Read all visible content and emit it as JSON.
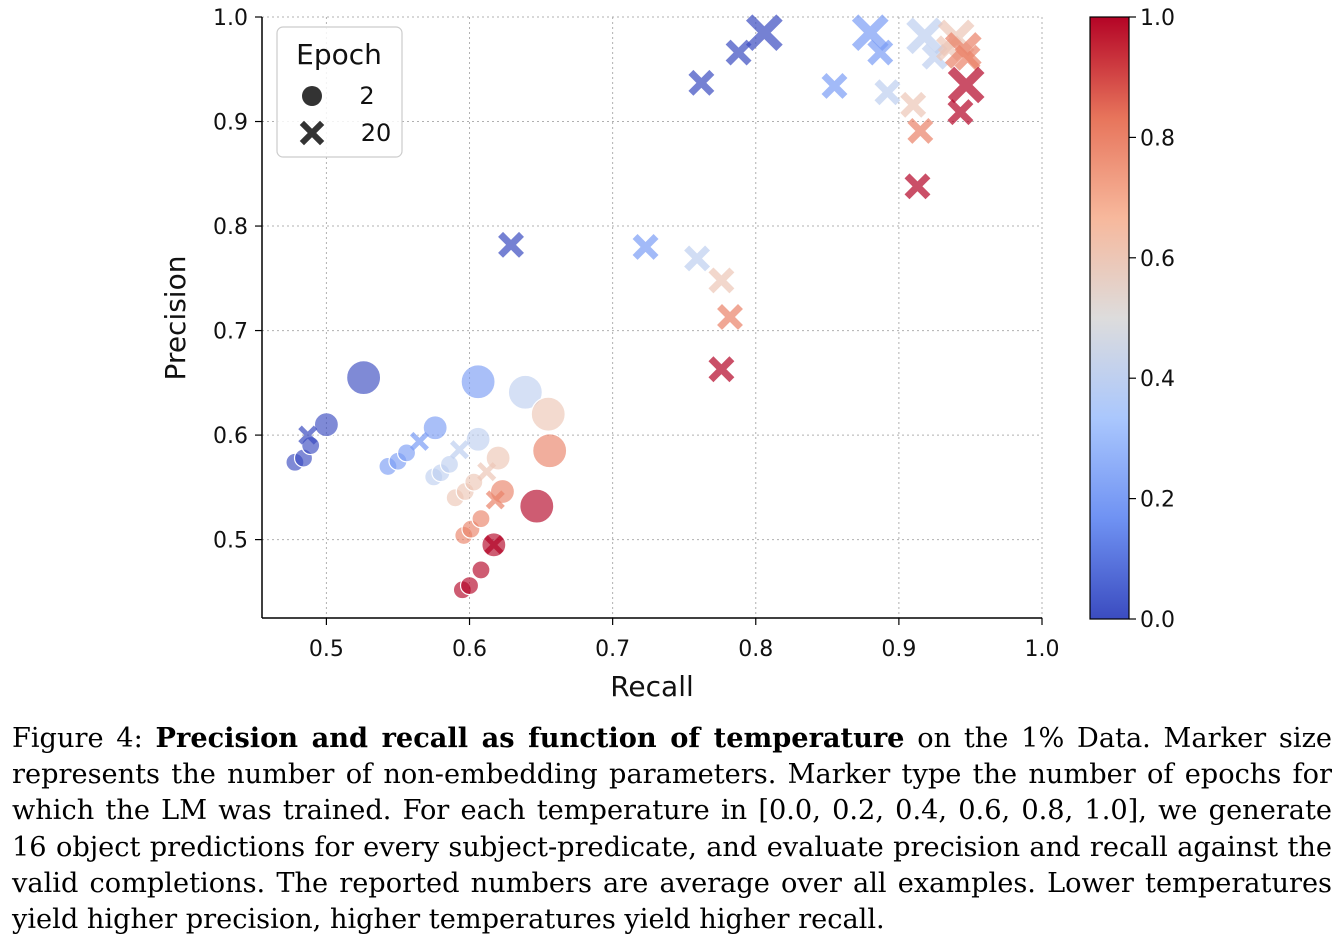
{
  "chart_data": {
    "type": "scatter",
    "xlabel": "Recall",
    "ylabel": "Precision",
    "xlim": [
      0.455,
      1.0
    ],
    "ylim": [
      0.425,
      1.0
    ],
    "x_ticks": [
      "0.5",
      "0.6",
      "0.7",
      "0.8",
      "0.9",
      "1.0"
    ],
    "y_ticks": [
      "0.5",
      "0.6",
      "0.7",
      "0.8",
      "0.9",
      "1.0"
    ],
    "grid": true,
    "legend": {
      "title": "Epoch",
      "placement": "top-left",
      "entries": [
        {
          "marker": "circle",
          "label": "2"
        },
        {
          "marker": "x",
          "label": "20"
        }
      ]
    },
    "colorbar": {
      "ticks": [
        "0.0",
        "0.2",
        "0.4",
        "0.6",
        "0.8",
        "1.0"
      ],
      "range": [
        0.0,
        1.0
      ],
      "colormap": "coolwarm",
      "colors": [
        "#3b4cc0",
        "#6f92f3",
        "#aac7fd",
        "#dddcdc",
        "#f7b89c",
        "#e7745b",
        "#b40426"
      ]
    },
    "points": [
      {
        "x": 0.478,
        "y": 0.574,
        "t": 0.0,
        "epoch": 2,
        "size": 1
      },
      {
        "x": 0.484,
        "y": 0.578,
        "t": 0.0,
        "epoch": 2,
        "size": 1
      },
      {
        "x": 0.489,
        "y": 0.59,
        "t": 0.0,
        "epoch": 2,
        "size": 1
      },
      {
        "x": 0.5,
        "y": 0.61,
        "t": 0.0,
        "epoch": 2,
        "size": 2
      },
      {
        "x": 0.526,
        "y": 0.655,
        "t": 0.0,
        "epoch": 2,
        "size": 4
      },
      {
        "x": 0.543,
        "y": 0.57,
        "t": 0.2,
        "epoch": 2,
        "size": 1
      },
      {
        "x": 0.55,
        "y": 0.575,
        "t": 0.2,
        "epoch": 2,
        "size": 1
      },
      {
        "x": 0.556,
        "y": 0.583,
        "t": 0.2,
        "epoch": 2,
        "size": 1
      },
      {
        "x": 0.576,
        "y": 0.607,
        "t": 0.2,
        "epoch": 2,
        "size": 2
      },
      {
        "x": 0.606,
        "y": 0.651,
        "t": 0.2,
        "epoch": 2,
        "size": 4
      },
      {
        "x": 0.575,
        "y": 0.56,
        "t": 0.4,
        "epoch": 2,
        "size": 1
      },
      {
        "x": 0.58,
        "y": 0.564,
        "t": 0.4,
        "epoch": 2,
        "size": 1
      },
      {
        "x": 0.586,
        "y": 0.572,
        "t": 0.4,
        "epoch": 2,
        "size": 1
      },
      {
        "x": 0.606,
        "y": 0.596,
        "t": 0.4,
        "epoch": 2,
        "size": 2
      },
      {
        "x": 0.639,
        "y": 0.641,
        "t": 0.4,
        "epoch": 2,
        "size": 4
      },
      {
        "x": 0.59,
        "y": 0.54,
        "t": 0.6,
        "epoch": 2,
        "size": 1
      },
      {
        "x": 0.597,
        "y": 0.546,
        "t": 0.6,
        "epoch": 2,
        "size": 1
      },
      {
        "x": 0.603,
        "y": 0.555,
        "t": 0.6,
        "epoch": 2,
        "size": 1
      },
      {
        "x": 0.62,
        "y": 0.578,
        "t": 0.6,
        "epoch": 2,
        "size": 2
      },
      {
        "x": 0.655,
        "y": 0.62,
        "t": 0.6,
        "epoch": 2,
        "size": 4
      },
      {
        "x": 0.596,
        "y": 0.504,
        "t": 0.8,
        "epoch": 2,
        "size": 1
      },
      {
        "x": 0.601,
        "y": 0.51,
        "t": 0.8,
        "epoch": 2,
        "size": 1
      },
      {
        "x": 0.608,
        "y": 0.52,
        "t": 0.8,
        "epoch": 2,
        "size": 1
      },
      {
        "x": 0.623,
        "y": 0.546,
        "t": 0.8,
        "epoch": 2,
        "size": 2
      },
      {
        "x": 0.656,
        "y": 0.585,
        "t": 0.8,
        "epoch": 2,
        "size": 4
      },
      {
        "x": 0.595,
        "y": 0.452,
        "t": 1.0,
        "epoch": 2,
        "size": 1
      },
      {
        "x": 0.6,
        "y": 0.456,
        "t": 1.0,
        "epoch": 2,
        "size": 1
      },
      {
        "x": 0.608,
        "y": 0.471,
        "t": 1.0,
        "epoch": 2,
        "size": 1
      },
      {
        "x": 0.617,
        "y": 0.495,
        "t": 1.0,
        "epoch": 2,
        "size": 2
      },
      {
        "x": 0.647,
        "y": 0.532,
        "t": 1.0,
        "epoch": 2,
        "size": 4
      },
      {
        "x": 0.487,
        "y": 0.6,
        "t": 0.0,
        "epoch": 20,
        "size": 1
      },
      {
        "x": 0.629,
        "y": 0.782,
        "t": 0.0,
        "epoch": 20,
        "size": 2
      },
      {
        "x": 0.762,
        "y": 0.937,
        "t": 0.0,
        "epoch": 20,
        "size": 2
      },
      {
        "x": 0.788,
        "y": 0.966,
        "t": 0.0,
        "epoch": 20,
        "size": 2
      },
      {
        "x": 0.806,
        "y": 0.985,
        "t": 0.0,
        "epoch": 20,
        "size": 4
      },
      {
        "x": 0.565,
        "y": 0.594,
        "t": 0.2,
        "epoch": 20,
        "size": 1
      },
      {
        "x": 0.723,
        "y": 0.78,
        "t": 0.2,
        "epoch": 20,
        "size": 2
      },
      {
        "x": 0.855,
        "y": 0.934,
        "t": 0.2,
        "epoch": 20,
        "size": 2
      },
      {
        "x": 0.887,
        "y": 0.966,
        "t": 0.2,
        "epoch": 20,
        "size": 2
      },
      {
        "x": 0.88,
        "y": 0.985,
        "t": 0.2,
        "epoch": 20,
        "size": 4
      },
      {
        "x": 0.593,
        "y": 0.586,
        "t": 0.4,
        "epoch": 20,
        "size": 1
      },
      {
        "x": 0.759,
        "y": 0.769,
        "t": 0.4,
        "epoch": 20,
        "size": 2
      },
      {
        "x": 0.892,
        "y": 0.928,
        "t": 0.4,
        "epoch": 20,
        "size": 2
      },
      {
        "x": 0.925,
        "y": 0.962,
        "t": 0.4,
        "epoch": 20,
        "size": 2
      },
      {
        "x": 0.918,
        "y": 0.982,
        "t": 0.4,
        "epoch": 20,
        "size": 4
      },
      {
        "x": 0.612,
        "y": 0.565,
        "t": 0.6,
        "epoch": 20,
        "size": 1
      },
      {
        "x": 0.776,
        "y": 0.748,
        "t": 0.6,
        "epoch": 20,
        "size": 2
      },
      {
        "x": 0.91,
        "y": 0.916,
        "t": 0.6,
        "epoch": 20,
        "size": 2
      },
      {
        "x": 0.935,
        "y": 0.97,
        "t": 0.6,
        "epoch": 20,
        "size": 2
      },
      {
        "x": 0.94,
        "y": 0.98,
        "t": 0.6,
        "epoch": 20,
        "size": 4
      },
      {
        "x": 0.618,
        "y": 0.538,
        "t": 0.8,
        "epoch": 20,
        "size": 1
      },
      {
        "x": 0.782,
        "y": 0.713,
        "t": 0.8,
        "epoch": 20,
        "size": 2
      },
      {
        "x": 0.915,
        "y": 0.891,
        "t": 0.8,
        "epoch": 20,
        "size": 2
      },
      {
        "x": 0.948,
        "y": 0.961,
        "t": 0.8,
        "epoch": 20,
        "size": 2
      },
      {
        "x": 0.945,
        "y": 0.968,
        "t": 0.8,
        "epoch": 20,
        "size": 4
      },
      {
        "x": 0.617,
        "y": 0.495,
        "t": 1.0,
        "epoch": 20,
        "size": 1
      },
      {
        "x": 0.776,
        "y": 0.663,
        "t": 1.0,
        "epoch": 20,
        "size": 2
      },
      {
        "x": 0.913,
        "y": 0.838,
        "t": 1.0,
        "epoch": 20,
        "size": 2
      },
      {
        "x": 0.943,
        "y": 0.909,
        "t": 1.0,
        "epoch": 20,
        "size": 2
      },
      {
        "x": 0.947,
        "y": 0.935,
        "t": 1.0,
        "epoch": 20,
        "size": 4
      }
    ]
  },
  "caption": {
    "label": "Figure 4:",
    "bold": "Precision and recall as function of temperature",
    "text": "on the 1% Data. Marker size represents the number of non-embedding parameters. Marker type the number of epochs for which the LM was trained. For each temperature in [0.0, 0.2, 0.4, 0.6, 0.8, 1.0], we generate 16 object predictions for every subject-predicate, and evaluate precision and recall against the valid completions. The reported numbers are average over all examples. Lower temperatures yield higher precision, higher temperatures yield higher recall."
  }
}
